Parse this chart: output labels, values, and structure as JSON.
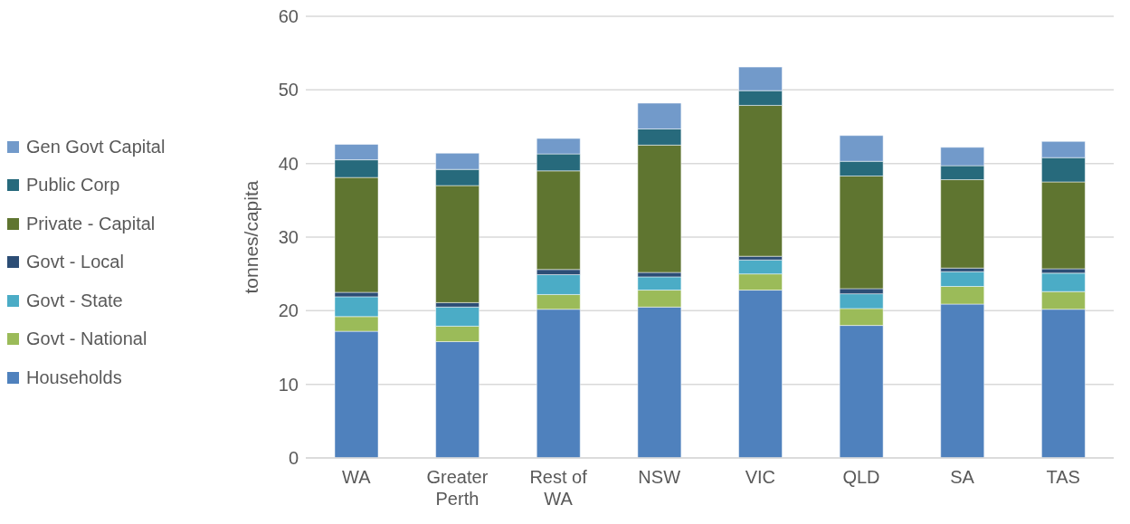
{
  "chart_data": {
    "type": "bar",
    "stacked": true,
    "ylabel": "tonnes/capita",
    "categories": [
      "WA",
      "Greater Perth",
      "Rest of WA",
      "NSW",
      "VIC",
      "QLD",
      "SA",
      "TAS"
    ],
    "series": [
      {
        "name": "Households",
        "color": "#4f81bd",
        "values": [
          17.2,
          15.8,
          20.2,
          20.5,
          22.8,
          18.0,
          20.9,
          20.2
        ]
      },
      {
        "name": "Govt - National",
        "color": "#9bbb59",
        "values": [
          2.0,
          2.1,
          2.0,
          2.3,
          2.2,
          2.3,
          2.4,
          2.4
        ]
      },
      {
        "name": "Govt - State",
        "color": "#4bacc6",
        "values": [
          2.7,
          2.6,
          2.7,
          1.8,
          1.9,
          2.0,
          2.0,
          2.5
        ]
      },
      {
        "name": "Govt - Local",
        "color": "#2c4d75",
        "values": [
          0.6,
          0.6,
          0.7,
          0.6,
          0.5,
          0.7,
          0.5,
          0.6
        ]
      },
      {
        "name": "Private - Capital",
        "color": "#5f7530",
        "values": [
          15.6,
          15.9,
          13.4,
          17.3,
          20.5,
          15.3,
          12.0,
          11.8
        ]
      },
      {
        "name": "Public Corp",
        "color": "#276a7c",
        "values": [
          2.4,
          2.2,
          2.3,
          2.2,
          2.0,
          2.0,
          1.9,
          3.3
        ]
      },
      {
        "name": "Gen Govt Capital",
        "color": "#729aca",
        "values": [
          2.1,
          2.2,
          2.1,
          3.5,
          3.2,
          3.5,
          2.5,
          2.2
        ]
      }
    ],
    "ylim": [
      0,
      60
    ],
    "yticks": [
      0,
      10,
      20,
      30,
      40,
      50,
      60
    ],
    "grid": "y",
    "legend": "left"
  }
}
